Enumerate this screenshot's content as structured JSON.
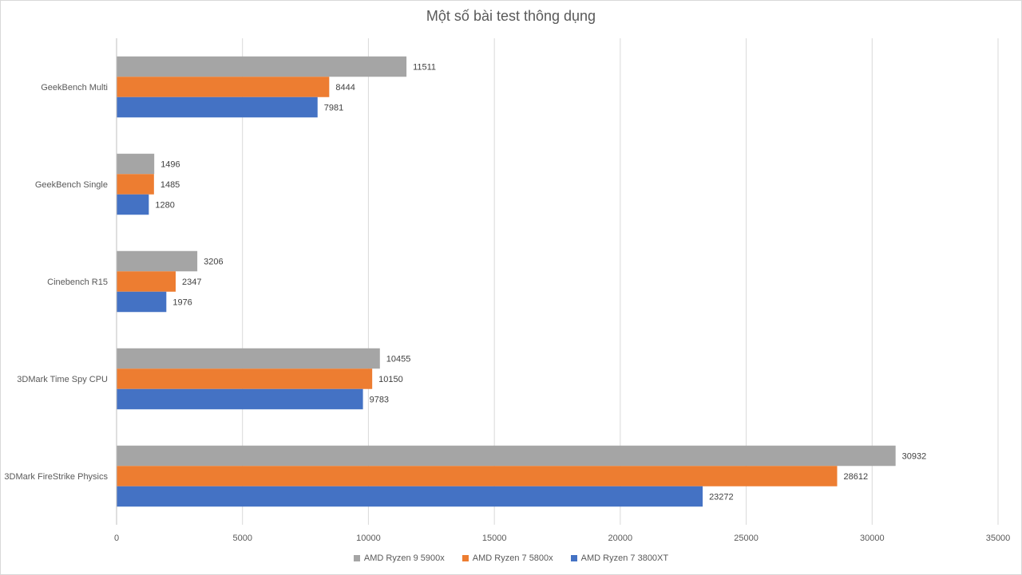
{
  "chart_data": {
    "type": "bar",
    "orientation": "horizontal",
    "title": "Một số bài test thông dụng",
    "categories": [
      "GeekBench Multi",
      "GeekBench Single",
      "Cinebench R15",
      "3DMark Time Spy CPU",
      "3DMark FireStrike Physics"
    ],
    "series": [
      {
        "name": "AMD Ryzen 9 5900x",
        "color": "#a5a5a5",
        "values": [
          11511,
          1496,
          3206,
          10455,
          30932
        ]
      },
      {
        "name": "AMD Ryzen 7 5800x",
        "color": "#ed7d31",
        "values": [
          8444,
          1485,
          2347,
          10150,
          28612
        ]
      },
      {
        "name": "AMD Ryzen 7 3800XT",
        "color": "#4472c4",
        "values": [
          7981,
          1280,
          1976,
          9783,
          23272
        ]
      }
    ],
    "xlim": [
      0,
      35000
    ],
    "xticks": [
      0,
      5000,
      10000,
      15000,
      20000,
      25000,
      30000,
      35000
    ],
    "grid": true,
    "legend_position": "bottom",
    "data_labels": true
  }
}
